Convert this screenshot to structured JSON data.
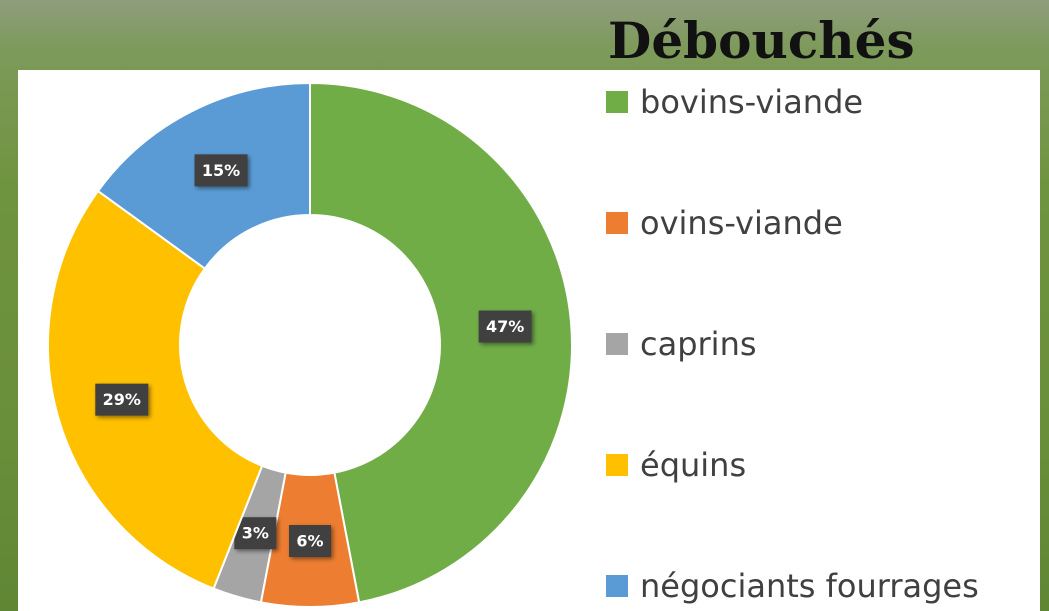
{
  "chart_data": {
    "type": "donut",
    "title": "Débouchés",
    "categories": [
      "bovins-viande",
      "ovins-viande",
      "caprins",
      "équins",
      "négociants fourrages"
    ],
    "values": [
      47,
      6,
      3,
      29,
      15
    ],
    "value_labels": [
      "47%",
      "6%",
      "3%",
      "29%",
      "15%"
    ],
    "colors": [
      "#70ad47",
      "#ed7d31",
      "#a5a5a5",
      "#ffc000",
      "#5b9bd5"
    ],
    "legend": "right"
  }
}
